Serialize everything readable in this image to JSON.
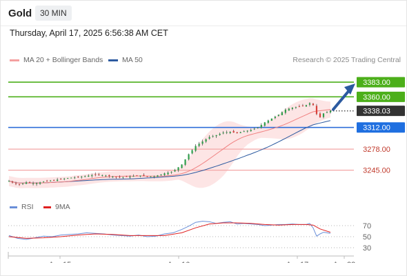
{
  "header": {
    "asset": "Gold",
    "timeframe": "30 MIN"
  },
  "datetime": "Thursday, April 17, 2025 6:56:38 AM CET",
  "legend": {
    "ma20": "MA 20 + Bollinger Bands",
    "ma50": "MA 50",
    "rsi": "RSI",
    "ma9": "9MA"
  },
  "credit": "Research © 2025 Trading Central",
  "colors": {
    "resistance": "#4caf1a",
    "support": "#2f6fd9",
    "pivot_light": "#f4a6a6",
    "last": "#333333",
    "ma20": "#f08080",
    "ma50": "#2c5aa0",
    "band": "#fde0e0",
    "rsi": "#6a8fd8",
    "ma9": "#e02020",
    "arrow": "#2c5aa0",
    "up": "#2e9e4a",
    "down": "#d9403a"
  },
  "chart_data": [
    {
      "type": "candlestick",
      "instrument": "Gold",
      "timeframe": "30 MIN",
      "x_ticks": [
        "Apr 15",
        "Apr 16",
        "Apr 17",
        "Apr 23"
      ],
      "ylim": [
        3210,
        3395
      ],
      "levels": [
        {
          "value": 3383.0,
          "label": "3383.00",
          "kind": "resistance"
        },
        {
          "value": 3360.0,
          "label": "3360.00",
          "kind": "resistance"
        },
        {
          "value": 3338.03,
          "label": "3338.03",
          "kind": "last"
        },
        {
          "value": 3312.0,
          "label": "3312.00",
          "kind": "support"
        },
        {
          "value": 3278.0,
          "label": "3278.00",
          "kind": "light"
        },
        {
          "value": 3245.0,
          "label": "3245.00",
          "kind": "light"
        }
      ],
      "price_path": [
        [
          0,
          3228
        ],
        [
          5,
          3222
        ],
        [
          10,
          3226
        ],
        [
          15,
          3224
        ],
        [
          20,
          3227
        ],
        [
          25,
          3229
        ],
        [
          30,
          3231
        ],
        [
          35,
          3233
        ],
        [
          40,
          3234
        ],
        [
          45,
          3236
        ],
        [
          50,
          3238
        ],
        [
          55,
          3237
        ],
        [
          60,
          3235
        ],
        [
          65,
          3234
        ],
        [
          70,
          3235
        ],
        [
          75,
          3237
        ],
        [
          80,
          3235
        ],
        [
          85,
          3236
        ],
        [
          90,
          3240
        ],
        [
          95,
          3243
        ],
        [
          100,
          3254
        ],
        [
          104,
          3270
        ],
        [
          108,
          3283
        ],
        [
          112,
          3290
        ],
        [
          116,
          3297
        ],
        [
          120,
          3300
        ],
        [
          124,
          3304
        ],
        [
          128,
          3305
        ],
        [
          132,
          3303
        ],
        [
          136,
          3306
        ],
        [
          140,
          3308
        ],
        [
          144,
          3312
        ],
        [
          148,
          3320
        ],
        [
          152,
          3326
        ],
        [
          156,
          3332
        ],
        [
          160,
          3340
        ],
        [
          164,
          3343
        ],
        [
          168,
          3345
        ],
        [
          172,
          3347
        ],
        [
          174,
          3350
        ],
        [
          176,
          3347
        ],
        [
          178,
          3333
        ],
        [
          180,
          3328
        ],
        [
          182,
          3334
        ],
        [
          184,
          3336
        ],
        [
          186,
          3338.03
        ]
      ],
      "projection": {
        "from": 3338.03,
        "to": 3383.0
      }
    },
    {
      "type": "line",
      "name": "RSI",
      "series": [
        "RSI",
        "9MA"
      ],
      "yticks": [
        30,
        50,
        70
      ],
      "rsi_path": [
        [
          0,
          52
        ],
        [
          5,
          47
        ],
        [
          10,
          45
        ],
        [
          15,
          48
        ],
        [
          20,
          51
        ],
        [
          25,
          50
        ],
        [
          30,
          53
        ],
        [
          35,
          54
        ],
        [
          40,
          55
        ],
        [
          45,
          57
        ],
        [
          50,
          56
        ],
        [
          55,
          55
        ],
        [
          60,
          53
        ],
        [
          65,
          52
        ],
        [
          70,
          51
        ],
        [
          75,
          53
        ],
        [
          80,
          50
        ],
        [
          85,
          51
        ],
        [
          90,
          55
        ],
        [
          95,
          57
        ],
        [
          100,
          63
        ],
        [
          104,
          69
        ],
        [
          108,
          76
        ],
        [
          112,
          78
        ],
        [
          116,
          77
        ],
        [
          120,
          74
        ],
        [
          124,
          76
        ],
        [
          128,
          77
        ],
        [
          132,
          73
        ],
        [
          136,
          74
        ],
        [
          140,
          73
        ],
        [
          144,
          72
        ],
        [
          148,
          70
        ],
        [
          152,
          71
        ],
        [
          156,
          72
        ],
        [
          160,
          72
        ],
        [
          164,
          73
        ],
        [
          168,
          72
        ],
        [
          172,
          72
        ],
        [
          174,
          74
        ],
        [
          176,
          66
        ],
        [
          178,
          51
        ],
        [
          180,
          55
        ],
        [
          182,
          58
        ],
        [
          184,
          57
        ],
        [
          186,
          56
        ]
      ],
      "ma9_path": [
        [
          0,
          50
        ],
        [
          10,
          47
        ],
        [
          20,
          48
        ],
        [
          30,
          50
        ],
        [
          40,
          53
        ],
        [
          50,
          55
        ],
        [
          60,
          54
        ],
        [
          70,
          52
        ],
        [
          80,
          52
        ],
        [
          90,
          52
        ],
        [
          100,
          57
        ],
        [
          108,
          66
        ],
        [
          116,
          73
        ],
        [
          124,
          75
        ],
        [
          132,
          75
        ],
        [
          140,
          74
        ],
        [
          148,
          72
        ],
        [
          156,
          71
        ],
        [
          164,
          72
        ],
        [
          172,
          72
        ],
        [
          176,
          71
        ],
        [
          180,
          64
        ],
        [
          186,
          58
        ]
      ]
    }
  ]
}
